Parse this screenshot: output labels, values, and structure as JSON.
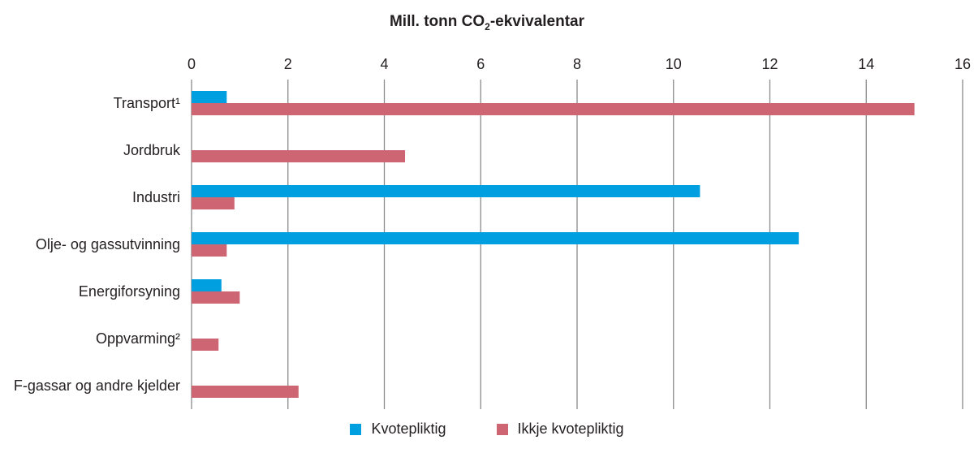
{
  "chart_data": {
    "type": "bar",
    "orientation": "horizontal",
    "title": "Mill. tonn CO2-ekvivalentar",
    "title_parts": {
      "pre": "Mill. tonn CO",
      "sub": "2",
      "post": "-ekvivalentar"
    },
    "categories": [
      "Transport¹",
      "Jordbruk",
      "Industri",
      "Olje- og gassutvinning",
      "Energiforsyning",
      "Oppvarming²",
      "F-gassar og andre kjelder"
    ],
    "series": [
      {
        "name": "Kvotepliktig",
        "color": "#009fe0",
        "values": [
          0.73,
          0,
          10.55,
          12.6,
          0.62,
          0,
          0
        ]
      },
      {
        "name": "Ikkje kvotepliktig",
        "color": "#cd6572",
        "values": [
          15.0,
          4.43,
          0.89,
          0.73,
          1.0,
          0.56,
          2.22
        ]
      }
    ],
    "xlim": [
      0,
      16
    ],
    "xticks": [
      "0",
      "2",
      "4",
      "6",
      "8",
      "10",
      "12",
      "14",
      "16"
    ],
    "xaxis_position": "top",
    "grid": true,
    "legend_position": "bottom"
  }
}
